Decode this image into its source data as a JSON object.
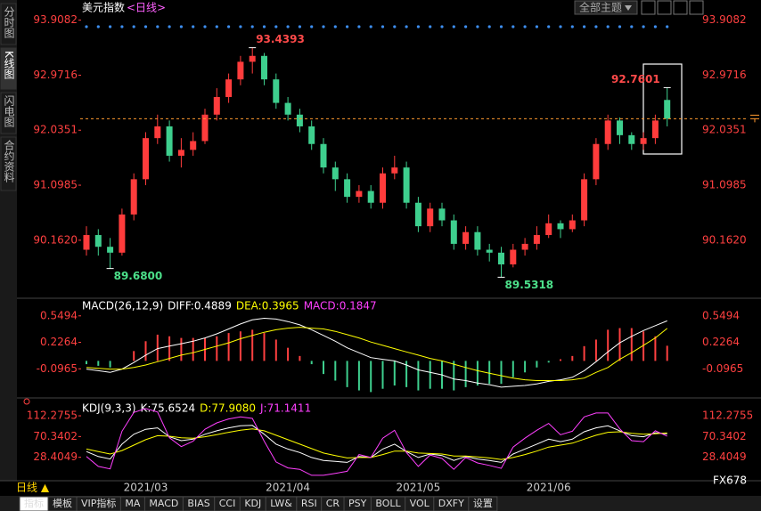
{
  "header": {
    "title": "美元指数",
    "period": "<日线>",
    "theme_button": "全部主题"
  },
  "side_tabs": [
    "分时图",
    "K线图",
    "闪电图",
    "合约资料"
  ],
  "chart_data": [
    {
      "type": "candlestick",
      "up_color": "#ff3c3c",
      "down_color": "#3ecf8e",
      "categories": [
        null,
        null,
        null,
        null,
        null,
        "2021/03",
        null,
        null,
        null,
        null,
        null,
        null,
        null,
        null,
        null,
        null,
        null,
        "2021/04",
        null,
        null,
        null,
        null,
        null,
        null,
        null,
        null,
        null,
        null,
        "2021/05",
        null,
        null,
        null,
        null,
        null,
        null,
        null,
        null,
        null,
        null,
        "2021/06",
        null,
        null,
        null,
        null,
        null,
        null,
        null,
        null,
        null,
        null
      ],
      "open": [
        90.0,
        90.25,
        90.05,
        89.95,
        90.6,
        91.2,
        91.9,
        92.1,
        91.6,
        91.7,
        91.85,
        92.3,
        92.6,
        92.9,
        93.2,
        93.3,
        92.9,
        92.5,
        92.3,
        92.1,
        91.8,
        91.4,
        91.2,
        90.9,
        91.0,
        90.8,
        91.3,
        91.4,
        90.8,
        90.4,
        90.7,
        90.5,
        90.1,
        90.3,
        90.0,
        89.95,
        89.75,
        90.0,
        90.1,
        90.25,
        90.45,
        90.35,
        90.5,
        91.2,
        91.8,
        92.2,
        91.95,
        91.8,
        91.9,
        92.55
      ],
      "high": [
        90.4,
        90.35,
        90.2,
        90.7,
        91.3,
        92.0,
        92.3,
        92.2,
        91.9,
        92.0,
        92.4,
        92.75,
        93.0,
        93.3,
        93.4393,
        93.35,
        93.0,
        92.6,
        92.4,
        92.2,
        91.9,
        91.5,
        91.3,
        91.1,
        91.1,
        91.4,
        91.6,
        91.5,
        90.9,
        90.8,
        90.8,
        90.6,
        90.4,
        90.4,
        90.1,
        90.05,
        90.1,
        90.2,
        90.4,
        90.6,
        90.5,
        90.6,
        91.3,
        91.9,
        92.3,
        92.25,
        92.0,
        92.0,
        92.3,
        92.7601
      ],
      "low": [
        89.9,
        89.9,
        89.68,
        89.9,
        90.5,
        91.1,
        91.8,
        91.5,
        91.4,
        91.6,
        91.8,
        92.2,
        92.5,
        92.8,
        93.0,
        92.8,
        92.4,
        92.2,
        92.0,
        91.7,
        91.3,
        91.0,
        90.8,
        90.8,
        90.7,
        90.7,
        91.2,
        90.7,
        90.3,
        90.3,
        90.4,
        90.0,
        90.0,
        89.9,
        89.8,
        89.5318,
        89.7,
        89.9,
        90.0,
        90.2,
        90.2,
        90.3,
        90.4,
        91.1,
        91.7,
        91.8,
        91.7,
        91.7,
        91.8,
        92.1
      ],
      "close": [
        90.25,
        90.05,
        89.95,
        90.6,
        91.2,
        91.9,
        92.1,
        91.6,
        91.7,
        91.85,
        92.3,
        92.6,
        92.9,
        93.2,
        93.3,
        92.9,
        92.5,
        92.3,
        92.1,
        91.8,
        91.4,
        91.2,
        90.9,
        91.0,
        90.8,
        91.3,
        91.4,
        90.8,
        90.4,
        90.7,
        90.5,
        90.1,
        90.3,
        90.0,
        89.95,
        89.75,
        90.0,
        90.1,
        90.25,
        90.45,
        90.35,
        90.5,
        91.2,
        91.8,
        92.2,
        91.95,
        91.8,
        91.9,
        92.2,
        92.23
      ],
      "annotations": [
        "93.4393",
        "89.6800",
        "89.5318",
        "92.7601"
      ],
      "ylim": [
        89.25,
        94.1
      ],
      "yticks": [
        93.9082,
        92.9716,
        92.0351,
        91.0985,
        {
          "value": 90.162,
          "label": "90.1620"
        }
      ]
    },
    {
      "type": "macd",
      "legend": [
        {
          "label": "MACD(26,12,9)",
          "color": "#ffffff"
        },
        {
          "label": "DIFF:0.4889",
          "color": "#ffffff"
        },
        {
          "label": "DEA:0.3965",
          "color": "#ffff00"
        },
        {
          "label": "MACD:0.1847",
          "color": "#ff40ff"
        }
      ],
      "series": [
        {
          "color": "#ffffff",
          "values": [
            -0.1,
            -0.12,
            -0.14,
            -0.1,
            -0.02,
            0.07,
            0.15,
            0.18,
            0.21,
            0.24,
            0.28,
            0.33,
            0.39,
            0.45,
            0.5,
            0.52,
            0.51,
            0.48,
            0.44,
            0.38,
            0.31,
            0.24,
            0.16,
            0.1,
            0.04,
            0.02,
            0.0,
            -0.05,
            -0.11,
            -0.14,
            -0.17,
            -0.22,
            -0.24,
            -0.27,
            -0.29,
            -0.32,
            -0.31,
            -0.3,
            -0.28,
            -0.25,
            -0.23,
            -0.2,
            -0.12,
            -0.01,
            0.11,
            0.22,
            0.3,
            0.37,
            0.43,
            0.4889
          ]
        },
        {
          "color": "#ffff00",
          "values": [
            -0.08,
            -0.09,
            -0.1,
            -0.1,
            -0.08,
            -0.05,
            -0.01,
            0.03,
            0.07,
            0.1,
            0.14,
            0.18,
            0.22,
            0.27,
            0.31,
            0.35,
            0.38,
            0.4,
            0.41,
            0.4,
            0.39,
            0.36,
            0.32,
            0.28,
            0.23,
            0.19,
            0.15,
            0.11,
            0.07,
            0.03,
            0.0,
            -0.04,
            -0.08,
            -0.12,
            -0.15,
            -0.18,
            -0.21,
            -0.23,
            -0.24,
            -0.24,
            -0.24,
            -0.23,
            -0.21,
            -0.14,
            -0.08,
            0.02,
            0.1,
            0.19,
            0.28,
            0.3965
          ]
        },
        {
          "style": "bar",
          "up_color": "#ff4040",
          "down_color": "#3ecf8e",
          "values": [
            -0.04,
            -0.06,
            -0.08,
            0,
            0.12,
            0.24,
            0.32,
            0.3,
            0.28,
            0.28,
            0.28,
            0.3,
            0.34,
            0.36,
            0.38,
            0.34,
            0.26,
            0.16,
            0.06,
            -0.04,
            -0.16,
            -0.24,
            -0.32,
            -0.36,
            -0.38,
            -0.34,
            -0.3,
            -0.32,
            -0.36,
            -0.34,
            -0.34,
            -0.36,
            -0.32,
            -0.3,
            -0.28,
            -0.28,
            -0.2,
            -0.14,
            -0.08,
            -0.02,
            0.02,
            0.06,
            0.18,
            0.26,
            0.38,
            0.4,
            0.4,
            0.36,
            0.3,
            0.1847
          ]
        }
      ],
      "ylim": [
        -0.43,
        0.71
      ],
      "yticks": [
        0.5494,
        0.2264,
        -0.0965
      ]
    },
    {
      "type": "line",
      "legend": [
        {
          "label": "KDJ(9,3,3)",
          "color": "#ffffff"
        },
        {
          "label": "K:75.6524",
          "color": "#ffffff"
        },
        {
          "label": "D:77.9080",
          "color": "#ffff00"
        },
        {
          "label": "J:71.1411",
          "color": "#ff40ff"
        }
      ],
      "series": [
        {
          "color": "#ffffff",
          "values": [
            40,
            30,
            25,
            55,
            75,
            85,
            88,
            70,
            62,
            65,
            75,
            82,
            88,
            92,
            93,
            75,
            55,
            45,
            38,
            28,
            22,
            20,
            18,
            30,
            28,
            45,
            55,
            40,
            28,
            35,
            32,
            22,
            30,
            25,
            22,
            18,
            35,
            45,
            55,
            65,
            60,
            65,
            80,
            88,
            92,
            82,
            72,
            70,
            78,
            75.6524
          ]
        },
        {
          "color": "#ffff00",
          "values": [
            45,
            40,
            35,
            42,
            53,
            64,
            72,
            71,
            68,
            67,
            70,
            74,
            79,
            83,
            86,
            82,
            73,
            64,
            55,
            46,
            37,
            32,
            27,
            28,
            28,
            34,
            41,
            41,
            37,
            36,
            35,
            31,
            31,
            29,
            27,
            24,
            28,
            34,
            41,
            49,
            53,
            57,
            65,
            73,
            79,
            80,
            77,
            75,
            76,
            77.908
          ]
        },
        {
          "color": "#ff40ff",
          "values": [
            30,
            10,
            5,
            81,
            119,
            127,
            120,
            68,
            50,
            61,
            85,
            98,
            106,
            110,
            107,
            61,
            19,
            7,
            4,
            -8,
            -8,
            -4,
            0,
            34,
            28,
            67,
            83,
            38,
            10,
            33,
            26,
            4,
            28,
            17,
            12,
            6,
            49,
            67,
            83,
            97,
            74,
            81,
            110,
            118,
            118,
            86,
            62,
            60,
            82,
            71.1411
          ]
        }
      ],
      "ylim": [
        -10,
        134
      ],
      "yticks": [
        112.2755,
        70.3402,
        28.4049
      ]
    }
  ],
  "bottom": {
    "period": "日线 ▲",
    "tabs": [
      "指标",
      "模板",
      "VIP指标",
      "MA",
      "MACD",
      "BIAS",
      "CCI",
      "KDJ",
      "LW&",
      "RSI",
      "CR",
      "PSY",
      "BOLL",
      "VOL",
      "DXFY",
      "设置"
    ]
  },
  "watermark": "FX678"
}
